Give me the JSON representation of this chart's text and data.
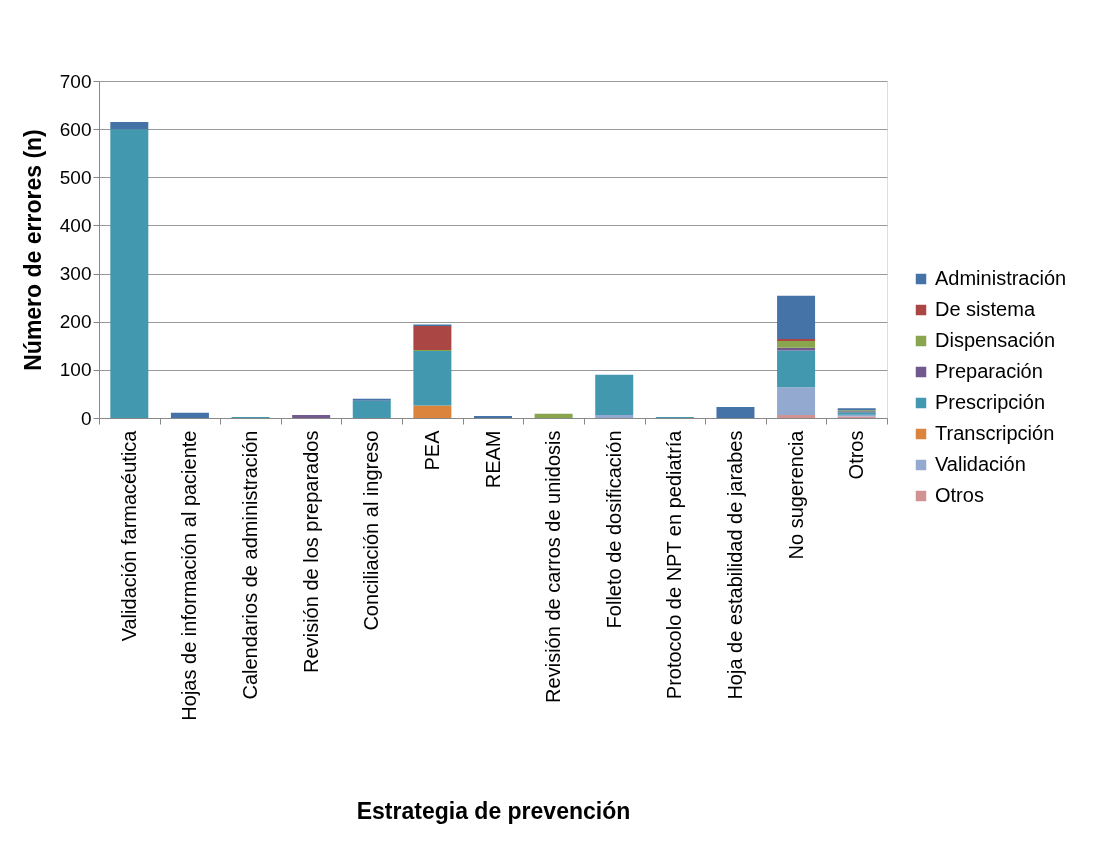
{
  "chart_data": {
    "type": "bar",
    "stacked": true,
    "xlabel": "Estrategia de prevención",
    "ylabel": "Número de errores (n)",
    "categories": [
      "Validación farmacéutica",
      "Hojas de información al paciente",
      "Calendarios de administración",
      "Revisión de los preparados",
      "Conciliación al ingreso",
      "PEA",
      "REAM",
      "Revisión de carros de unidosis",
      "Folleto de dosificación",
      "Protocolo de NPT en pediatría",
      "Hoja de estabilidad de jarabes",
      "No sugerencia",
      "Otros"
    ],
    "series": [
      {
        "name": "Otros",
        "color": "#d19392",
        "values": [
          null,
          null,
          null,
          null,
          null,
          null,
          null,
          null,
          null,
          null,
          null,
          6,
          3
        ]
      },
      {
        "name": "Validación",
        "color": "#93a9cf",
        "values": [
          null,
          null,
          null,
          null,
          null,
          null,
          null,
          null,
          6,
          null,
          null,
          58,
          4
        ]
      },
      {
        "name": "Transcripción",
        "color": "#db843d",
        "values": [
          null,
          null,
          null,
          null,
          null,
          26,
          null,
          null,
          null,
          null,
          null,
          null,
          null
        ]
      },
      {
        "name": "Prescripción",
        "color": "#4198af",
        "values": [
          600,
          null,
          2,
          null,
          36,
          113,
          null,
          null,
          84,
          2,
          null,
          76,
          5
        ]
      },
      {
        "name": "Preparación",
        "color": "#71588f",
        "values": [
          null,
          null,
          null,
          6,
          null,
          null,
          null,
          null,
          null,
          null,
          null,
          6,
          2
        ]
      },
      {
        "name": "Dispensación",
        "color": "#89a54e",
        "values": [
          null,
          null,
          null,
          null,
          null,
          2,
          null,
          9,
          null,
          null,
          null,
          14,
          2
        ]
      },
      {
        "name": "De sistema",
        "color": "#aa4643",
        "values": [
          null,
          null,
          null,
          null,
          null,
          50,
          null,
          null,
          null,
          null,
          null,
          4,
          null
        ]
      },
      {
        "name": "Administración",
        "color": "#4572a7",
        "values": [
          15,
          11,
          null,
          null,
          4,
          3,
          4,
          null,
          null,
          null,
          23,
          90,
          4
        ]
      }
    ],
    "ylim": [
      0,
      700
    ],
    "yticks": [
      0,
      100,
      200,
      300,
      400,
      500,
      600,
      700
    ],
    "grid": "y",
    "legend": "right"
  }
}
